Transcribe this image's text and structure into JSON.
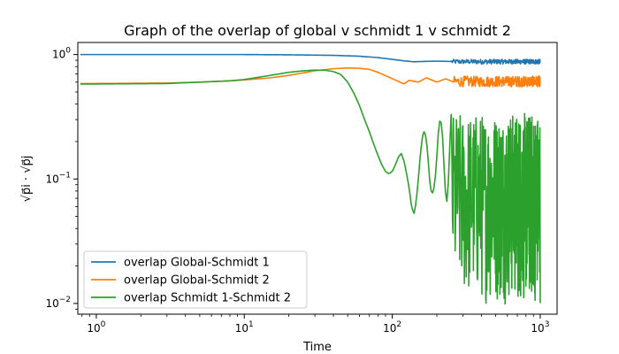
{
  "chart_data": {
    "type": "line",
    "title": "Graph of the overlap of global v schmidt 1 v schmidt 2",
    "xlabel": "Time",
    "ylabel": "√p⃗i · √p⃗j",
    "xscale": "log",
    "yscale": "log",
    "xlim": [
      0.75,
      1300
    ],
    "ylim": [
      0.0082,
      1.25
    ],
    "x_ticks": [
      {
        "value": 1,
        "base": "10",
        "exp": "0"
      },
      {
        "value": 10,
        "base": "10",
        "exp": "1"
      },
      {
        "value": 100,
        "base": "10",
        "exp": "2"
      },
      {
        "value": 1000,
        "base": "10",
        "exp": "3"
      }
    ],
    "y_ticks": [
      {
        "value": 1,
        "base": "10",
        "exp": "0"
      },
      {
        "value": 0.1,
        "base": "10",
        "exp": "−1"
      },
      {
        "value": 0.01,
        "base": "10",
        "exp": "−2"
      }
    ],
    "grid": false,
    "legend_position": "lower-left",
    "series": [
      {
        "name": "overlap Global-Schmidt 1",
        "color": "#1f77b4",
        "style": "smooth",
        "x": [
          1,
          5,
          10,
          20,
          40,
          60,
          80,
          100,
          120,
          140,
          160,
          200,
          250
        ],
        "y": [
          1.0,
          1.0,
          1.0,
          0.995,
          0.985,
          0.97,
          0.945,
          0.915,
          0.89,
          0.875,
          0.88,
          0.885,
          0.88
        ]
      },
      {
        "name": "overlap Global-Schmidt 2",
        "color": "#ff7f0e",
        "style": "smooth",
        "x": [
          1,
          3,
          5,
          8,
          10,
          15,
          20,
          30,
          40,
          50,
          60,
          70,
          80,
          100,
          120,
          130,
          150,
          170,
          200,
          230,
          260
        ],
        "y": [
          0.585,
          0.59,
          0.6,
          0.615,
          0.625,
          0.65,
          0.68,
          0.74,
          0.77,
          0.78,
          0.775,
          0.76,
          0.72,
          0.64,
          0.58,
          0.62,
          0.6,
          0.65,
          0.6,
          0.64,
          0.6
        ]
      },
      {
        "name": "overlap Schmidt 1-Schmidt 2",
        "color": "#2ca02c",
        "style": "smooth",
        "x": [
          1,
          3,
          5,
          8,
          10,
          15,
          20,
          25,
          30,
          35,
          40,
          45,
          50,
          55,
          60,
          65,
          70,
          75,
          80,
          85,
          90,
          95,
          100,
          105,
          110,
          115,
          120,
          125,
          130,
          135,
          140,
          145,
          150,
          155,
          160,
          165,
          170,
          175,
          180,
          185,
          190,
          195,
          200,
          205,
          210,
          215,
          220,
          225,
          230,
          235,
          240,
          245,
          250
        ],
        "y": [
          0.58,
          0.585,
          0.6,
          0.615,
          0.63,
          0.68,
          0.72,
          0.74,
          0.75,
          0.748,
          0.73,
          0.69,
          0.6,
          0.49,
          0.39,
          0.3,
          0.24,
          0.19,
          0.155,
          0.13,
          0.115,
          0.11,
          0.115,
          0.13,
          0.15,
          0.16,
          0.14,
          0.11,
          0.085,
          0.06,
          0.052,
          0.065,
          0.1,
          0.16,
          0.22,
          0.245,
          0.21,
          0.14,
          0.09,
          0.075,
          0.08,
          0.1,
          0.15,
          0.24,
          0.3,
          0.28,
          0.2,
          0.11,
          0.07,
          0.065,
          0.1,
          0.19,
          0.33
        ]
      }
    ],
    "noisy_tail": [
      {
        "series": 0,
        "xrange": [
          250,
          1000
        ],
        "yrange": [
          0.84,
          0.915
        ]
      },
      {
        "series": 1,
        "xrange": [
          260,
          1000
        ],
        "yrange": [
          0.55,
          0.67
        ]
      },
      {
        "series": 2,
        "xrange": [
          250,
          1000
        ],
        "yrange": [
          0.0098,
          0.34
        ]
      }
    ]
  }
}
